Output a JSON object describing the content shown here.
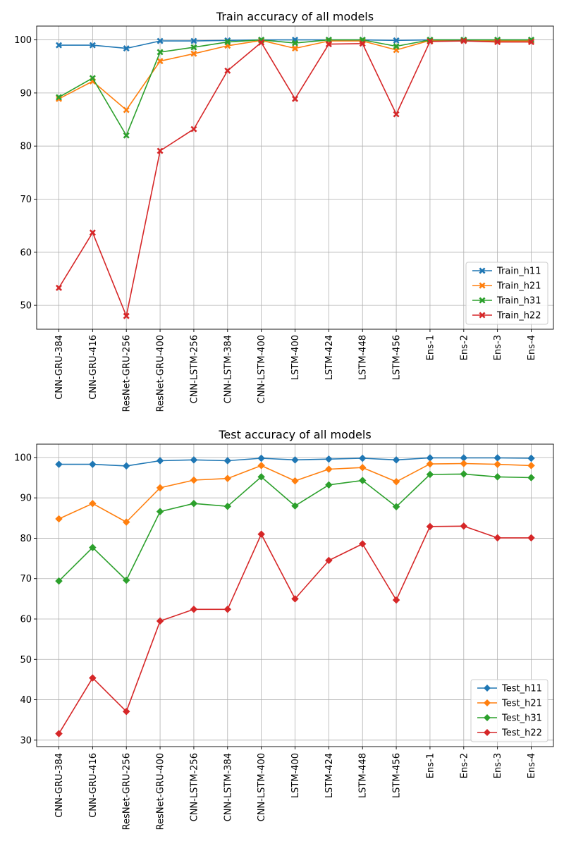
{
  "chart_data": [
    {
      "type": "line",
      "title": "Train accuracy of all models",
      "xlabel": "",
      "ylabel": "",
      "ylim": [
        45.5,
        102.6
      ],
      "yticks": [
        50,
        60,
        70,
        80,
        90,
        100
      ],
      "grid": true,
      "legend_position": "lower-right",
      "marker": "x",
      "categories": [
        "CNN-GRU-384",
        "CNN-GRU-416",
        "ResNet-GRU-256",
        "ResNet-GRU-400",
        "CNN-LSTM-256",
        "CNN-LSTM-384",
        "CNN-LSTM-400",
        "LSTM-400",
        "LSTM-424",
        "LSTM-448",
        "LSTM-456",
        "Ens-1",
        "Ens-2",
        "Ens-3",
        "Ens-4"
      ],
      "series": [
        {
          "name": "Train_h11",
          "color": "#1f77b4",
          "values": [
            99.0,
            99.0,
            98.4,
            99.8,
            99.8,
            99.9,
            100.0,
            100.0,
            100.0,
            100.0,
            99.9,
            100.0,
            100.0,
            100.0,
            100.0
          ]
        },
        {
          "name": "Train_h21",
          "color": "#ff7f0e",
          "values": [
            88.9,
            92.2,
            86.8,
            96.0,
            97.4,
            98.9,
            99.9,
            98.4,
            99.8,
            99.8,
            98.1,
            99.9,
            99.9,
            99.8,
            99.8
          ]
        },
        {
          "name": "Train_h31",
          "color": "#2ca02c",
          "values": [
            89.2,
            92.8,
            82.0,
            97.7,
            98.6,
            99.6,
            100.0,
            99.4,
            100.0,
            100.0,
            98.8,
            100.0,
            100.0,
            100.0,
            100.0
          ]
        },
        {
          "name": "Train_h22",
          "color": "#d62728",
          "values": [
            53.3,
            63.7,
            48.0,
            79.1,
            83.2,
            94.2,
            99.5,
            88.9,
            99.2,
            99.3,
            86.0,
            99.7,
            99.8,
            99.6,
            99.6
          ]
        }
      ]
    },
    {
      "type": "line",
      "title": "Test accuracy of all models",
      "xlabel": "",
      "ylabel": "",
      "ylim": [
        28.4,
        103.3
      ],
      "yticks": [
        30,
        40,
        50,
        60,
        70,
        80,
        90,
        100
      ],
      "grid": true,
      "legend_position": "lower-right",
      "marker": "diamond",
      "categories": [
        "CNN-GRU-384",
        "CNN-GRU-416",
        "ResNet-GRU-256",
        "ResNet-GRU-400",
        "CNN-LSTM-256",
        "CNN-LSTM-384",
        "CNN-LSTM-400",
        "LSTM-400",
        "LSTM-424",
        "LSTM-448",
        "LSTM-456",
        "Ens-1",
        "Ens-2",
        "Ens-3",
        "Ens-4"
      ],
      "series": [
        {
          "name": "Test_h11",
          "color": "#1f77b4",
          "values": [
            98.3,
            98.3,
            97.9,
            99.2,
            99.4,
            99.2,
            99.8,
            99.4,
            99.6,
            99.8,
            99.4,
            99.9,
            99.9,
            99.9,
            99.8
          ]
        },
        {
          "name": "Test_h21",
          "color": "#ff7f0e",
          "values": [
            84.8,
            88.6,
            84.0,
            92.5,
            94.4,
            94.8,
            98.0,
            94.2,
            97.1,
            97.5,
            94.0,
            98.4,
            98.5,
            98.3,
            98.0
          ]
        },
        {
          "name": "Test_h31",
          "color": "#2ca02c",
          "values": [
            69.4,
            77.7,
            69.6,
            86.6,
            88.6,
            87.9,
            95.2,
            88.0,
            93.2,
            94.3,
            87.8,
            95.8,
            95.9,
            95.2,
            95.0
          ]
        },
        {
          "name": "Test_h22",
          "color": "#d62728",
          "values": [
            31.6,
            45.4,
            37.1,
            59.5,
            62.4,
            62.4,
            81.0,
            65.0,
            74.5,
            78.6,
            64.7,
            82.9,
            83.0,
            80.1,
            80.1
          ]
        }
      ]
    }
  ]
}
